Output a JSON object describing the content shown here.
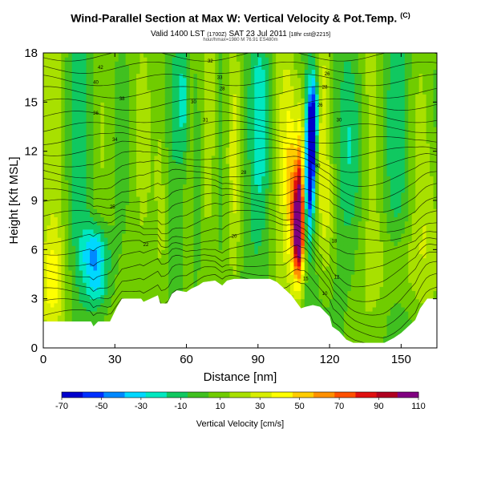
{
  "header": {
    "title": "Wind-Parallel Section at Max W: Vertical Velocity & Pot.Temp.",
    "title_mark": "(C)",
    "subtitle_main": "Valid 1400 LST",
    "subtitle_paren": "(1700Z)",
    "subtitle_date": "SAT 23 Jul 2011",
    "subtitle_init": "[18hr cst@2215]",
    "info": "hour/hmax=1980 M 76.91 ES480m"
  },
  "chart_data": {
    "type": "heatmap",
    "title": "Wind-Parallel Section at Max W: Vertical Velocity & Pot.Temp.",
    "xlabel": "Distance [nm]",
    "ylabel": "Height [Kft MSL]",
    "xlim": [
      0,
      165
    ],
    "ylim": [
      0,
      18
    ],
    "x_ticks": [
      0,
      30,
      60,
      90,
      120,
      150
    ],
    "y_ticks": [
      0,
      3,
      6,
      9,
      12,
      15,
      18
    ],
    "colorbar": {
      "label": "Vertical Velocity [cm/s]",
      "ticks": [
        -70,
        -50,
        -30,
        -10,
        10,
        30,
        50,
        70,
        90,
        110
      ],
      "colors": [
        "#0000cc",
        "#0030ff",
        "#0088ff",
        "#00d8ff",
        "#00e8c0",
        "#10c860",
        "#40c020",
        "#70cc00",
        "#a8e000",
        "#d8ee00",
        "#ffff00",
        "#ffcc00",
        "#ff9000",
        "#ff5000",
        "#e01010",
        "#b00020",
        "#800080"
      ]
    },
    "terrain": [
      [
        0,
        1.6
      ],
      [
        8,
        1.6
      ],
      [
        20,
        1.6
      ],
      [
        21,
        1.3
      ],
      [
        23,
        1.6
      ],
      [
        28,
        1.6
      ],
      [
        31,
        2.5
      ],
      [
        33,
        3.0
      ],
      [
        41,
        3.0
      ],
      [
        42,
        2.8
      ],
      [
        45,
        3.0
      ],
      [
        48,
        3.2
      ],
      [
        49,
        2.7
      ],
      [
        52,
        2.7
      ],
      [
        54,
        3.3
      ],
      [
        56,
        3.5
      ],
      [
        60,
        3.4
      ],
      [
        62,
        3.6
      ],
      [
        65,
        3.8
      ],
      [
        67,
        4.0
      ],
      [
        72,
        4.1
      ],
      [
        75,
        3.8
      ],
      [
        77,
        4.1
      ],
      [
        80,
        4.2
      ],
      [
        95,
        4.2
      ],
      [
        98,
        4.0
      ],
      [
        101,
        3.6
      ],
      [
        104,
        3.2
      ],
      [
        106,
        2.8
      ],
      [
        108,
        2.4
      ],
      [
        110,
        2.5
      ],
      [
        113,
        2.6
      ],
      [
        116,
        2.5
      ],
      [
        118,
        2.2
      ],
      [
        120,
        1.9
      ],
      [
        121,
        1.3
      ],
      [
        124,
        1.0
      ],
      [
        127,
        0.5
      ],
      [
        130,
        0.3
      ],
      [
        143,
        0.3
      ],
      [
        147,
        0.6
      ],
      [
        150,
        0.9
      ],
      [
        153,
        1.3
      ],
      [
        156,
        1.7
      ],
      [
        158,
        2.4
      ],
      [
        160,
        2.8
      ],
      [
        161,
        3.0
      ],
      [
        165,
        3.0
      ]
    ],
    "features": [
      {
        "name": "updraft-core",
        "x": 107,
        "y": 7.3,
        "w": 110
      },
      {
        "name": "downdraft-core",
        "x": 112,
        "y": 12.0,
        "w": -70
      },
      {
        "name": "downdraft-left",
        "x": 22,
        "y": 5.6,
        "w": -30
      }
    ],
    "contour_labels": [
      {
        "text": "42",
        "x": 24,
        "y": 17.1
      },
      {
        "text": "40",
        "x": 22,
        "y": 16.2
      },
      {
        "text": "38",
        "x": 33,
        "y": 15.2
      },
      {
        "text": "36",
        "x": 22,
        "y": 14.3
      },
      {
        "text": "34",
        "x": 30,
        "y": 12.7
      },
      {
        "text": "32",
        "x": 70,
        "y": 17.5
      },
      {
        "text": "33",
        "x": 74,
        "y": 16.5
      },
      {
        "text": "30",
        "x": 63,
        "y": 15.0
      },
      {
        "text": "31",
        "x": 68,
        "y": 13.9
      },
      {
        "text": "28",
        "x": 75,
        "y": 15.8
      },
      {
        "text": "26",
        "x": 119,
        "y": 16.7
      },
      {
        "text": "28",
        "x": 118,
        "y": 15.9
      },
      {
        "text": "26",
        "x": 116,
        "y": 14.8
      },
      {
        "text": "30",
        "x": 124,
        "y": 13.9
      },
      {
        "text": "30",
        "x": 115,
        "y": 11.1
      },
      {
        "text": "28",
        "x": 84,
        "y": 10.7
      },
      {
        "text": "25",
        "x": 29,
        "y": 8.6
      },
      {
        "text": "22",
        "x": 43,
        "y": 6.3
      },
      {
        "text": "20",
        "x": 80,
        "y": 6.8
      },
      {
        "text": "18",
        "x": 122,
        "y": 6.5
      },
      {
        "text": "15",
        "x": 110,
        "y": 4.2
      },
      {
        "text": "12",
        "x": 123,
        "y": 4.3
      },
      {
        "text": "10",
        "x": 118,
        "y": 3.3
      }
    ]
  }
}
